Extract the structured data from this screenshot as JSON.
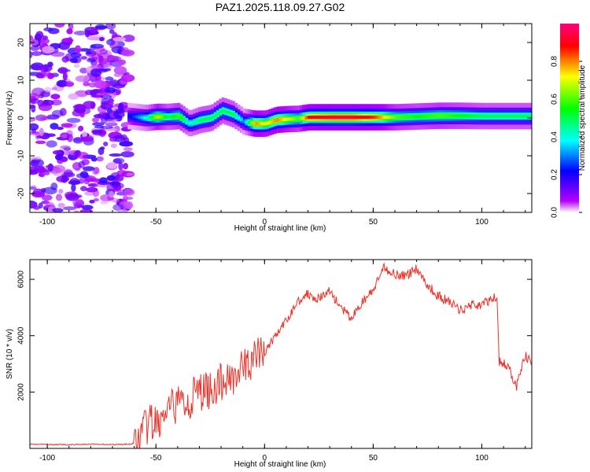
{
  "figure_title": "PAZ1.2025.118.09.27.G02",
  "chart_data": [
    {
      "type": "heatmap",
      "title": "PAZ1.2025.118.09.27.G02",
      "xlabel": "Height of straight line (km)",
      "ylabel": "Frequency (Hz)",
      "xlim": [
        -108,
        123
      ],
      "ylim": [
        -25,
        25
      ],
      "x_ticks": [
        -100,
        -50,
        0,
        50,
        100
      ],
      "y_ticks": [
        -20,
        -10,
        0,
        10,
        20
      ],
      "colorbar": {
        "label": "Normalized spectral amplitude",
        "range": [
          0,
          1
        ],
        "ticks": [
          "0.0",
          "0.2",
          "0.4",
          "0.6",
          "0.8"
        ],
        "colors": [
          "#ffffff",
          "#b400ff",
          "#0000ff",
          "#00ffff",
          "#00ff00",
          "#ffff00",
          "#ff0000",
          "#ff0080"
        ]
      },
      "ridge": {
        "x": [
          -63,
          -55,
          -50,
          -45,
          -40,
          -35,
          -30,
          -25,
          -20,
          -15,
          -10,
          -5,
          0,
          5,
          10,
          15,
          20,
          30,
          40,
          50,
          60,
          70,
          80,
          90,
          100,
          110,
          123
        ],
        "freq": [
          0.5,
          0,
          0.3,
          0.3,
          0.5,
          -1.5,
          -0.5,
          0,
          2,
          1,
          -1,
          -1.5,
          -1.5,
          -0.5,
          -0.3,
          -0.2,
          0.2,
          0.2,
          0.2,
          0.2,
          0.2,
          0.4,
          0.6,
          0.6,
          0.5,
          0.5,
          0.5
        ],
        "amplitude": [
          0.2,
          0.4,
          0.7,
          0.5,
          0.6,
          0.4,
          0.5,
          0.5,
          0.5,
          0.5,
          0.3,
          0.8,
          0.7,
          0.8,
          0.7,
          0.6,
          0.9,
          0.95,
          0.95,
          0.85,
          0.6,
          0.55,
          0.6,
          0.55,
          0.5,
          0.5,
          0.5
        ]
      }
    },
    {
      "type": "line",
      "xlabel": "Height of straight line (km)",
      "ylabel": "SNR (10 * v/v)",
      "xlim": [
        -108,
        123
      ],
      "ylim": [
        0,
        6700
      ],
      "x_ticks": [
        -100,
        -50,
        0,
        50,
        100
      ],
      "y_ticks": [
        2000,
        4000,
        6000
      ],
      "color": "#e8332a",
      "x": [
        -108,
        -100,
        -90,
        -80,
        -70,
        -62,
        -58,
        -55,
        -52,
        -50,
        -45,
        -40,
        -35,
        -30,
        -25,
        -20,
        -15,
        -10,
        -5,
        0,
        5,
        10,
        15,
        20,
        25,
        30,
        35,
        40,
        45,
        50,
        55,
        60,
        65,
        70,
        75,
        80,
        85,
        90,
        95,
        100,
        105,
        107,
        108,
        112,
        116,
        120,
        123
      ],
      "y": [
        150,
        140,
        130,
        150,
        140,
        150,
        200,
        700,
        900,
        800,
        1200,
        1600,
        1700,
        2000,
        2100,
        2300,
        2600,
        2800,
        3200,
        3400,
        4000,
        4500,
        5200,
        5500,
        5300,
        5600,
        5000,
        4600,
        5200,
        5600,
        6400,
        6200,
        6100,
        6400,
        5800,
        5400,
        5200,
        4900,
        5100,
        5100,
        5300,
        5400,
        3100,
        2900,
        2200,
        3300,
        3000
      ]
    }
  ]
}
